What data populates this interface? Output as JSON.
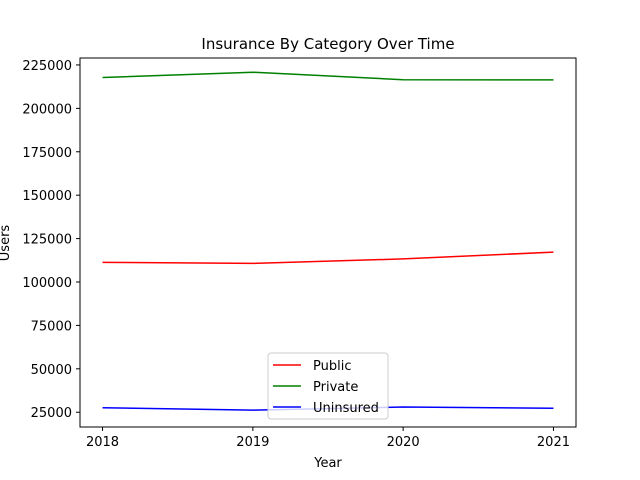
{
  "chart_data": {
    "type": "line",
    "title": "Insurance By Category Over Time",
    "xlabel": "Year",
    "ylabel": "Users",
    "x": [
      2018,
      2019,
      2020,
      2021
    ],
    "x_ticks": [
      "2018",
      "2019",
      "2020",
      "2021"
    ],
    "y_ticks": [
      "25000",
      "50000",
      "75000",
      "100000",
      "125000",
      "150000",
      "175000",
      "200000",
      "225000"
    ],
    "xlim": [
      2017.85,
      2021.15
    ],
    "ylim": [
      16500,
      229000
    ],
    "grid": false,
    "legend_position": "lower center",
    "series": [
      {
        "name": "Public",
        "color": "#ff0000",
        "values": [
          111300,
          110700,
          113300,
          117200
        ]
      },
      {
        "name": "Private",
        "color": "#008000",
        "values": [
          217800,
          220800,
          216500,
          216400
        ]
      },
      {
        "name": "Uninsured",
        "color": "#0000ff",
        "values": [
          27600,
          26200,
          28000,
          27300
        ]
      }
    ]
  }
}
